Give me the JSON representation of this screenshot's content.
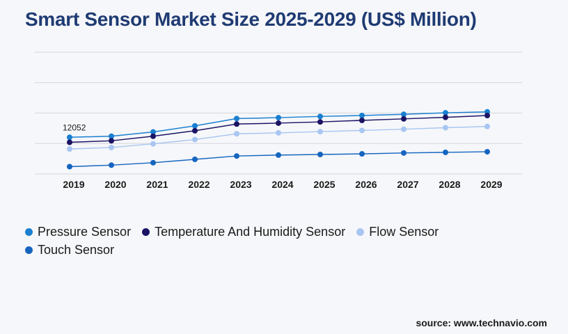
{
  "title": "Smart Sensor Market Size 2025-2029 (US$ Million)",
  "source": "source: www.technavio.com",
  "chart_data": {
    "type": "line",
    "title": "Smart Sensor Market Size 2025-2029 (US$ Million)",
    "xlabel": "",
    "ylabel": "",
    "x": [
      "2019",
      "2020",
      "2021",
      "2022",
      "2023",
      "2024",
      "2025",
      "2026",
      "2027",
      "2028",
      "2029"
    ],
    "ylim": [
      0,
      40000
    ],
    "grid": true,
    "legend_position": "bottom-left",
    "annotations": [
      {
        "series": 0,
        "x": "2019",
        "label": "12052"
      }
    ],
    "series": [
      {
        "name": "Pressure Sensor",
        "color": "#1a7fd0",
        "values": [
          12052,
          12400,
          13800,
          15800,
          18200,
          18500,
          18900,
          19200,
          19600,
          20100,
          20400
        ]
      },
      {
        "name": "Temperature And Humidity Sensor",
        "color": "#1b1464",
        "values": [
          10400,
          10900,
          12400,
          14200,
          16400,
          16700,
          17100,
          17600,
          18100,
          18600,
          19200
        ]
      },
      {
        "name": "Flow Sensor",
        "color": "#a9c6f2",
        "values": [
          8200,
          8700,
          9900,
          11300,
          13200,
          13500,
          13900,
          14300,
          14700,
          15200,
          15600
        ]
      },
      {
        "name": "Touch Sensor",
        "color": "#1565c0",
        "values": [
          2400,
          2900,
          3700,
          4800,
          5900,
          6200,
          6400,
          6600,
          6900,
          7100,
          7300
        ]
      }
    ]
  }
}
